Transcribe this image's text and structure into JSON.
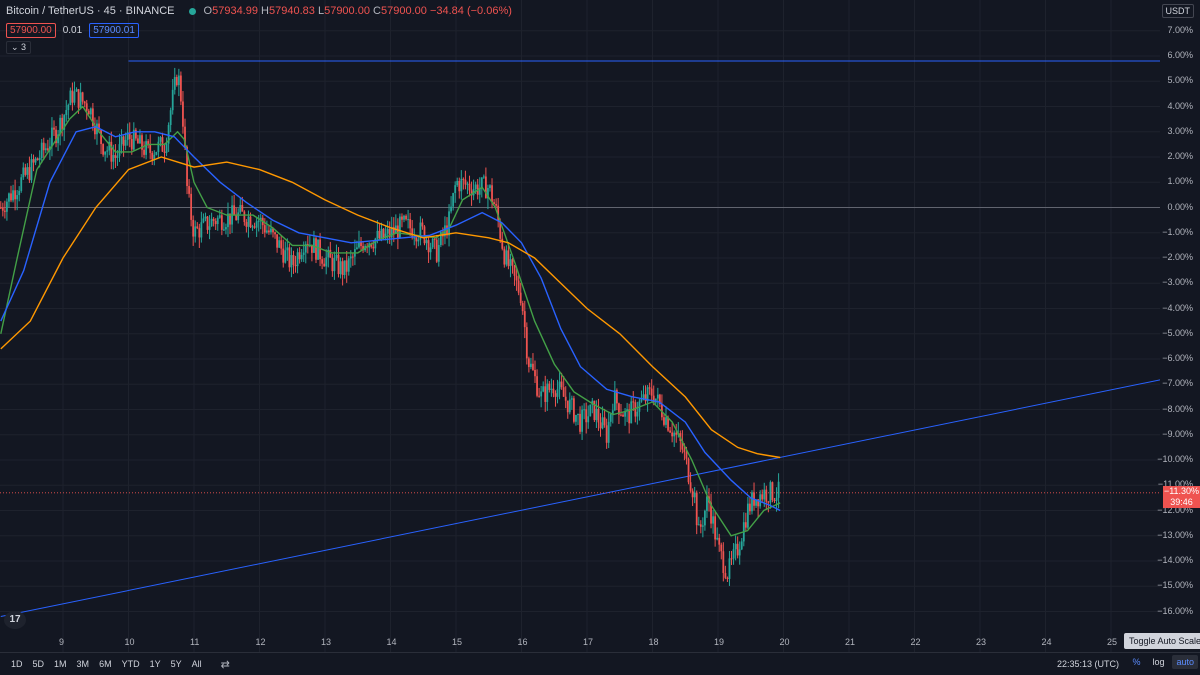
{
  "header": {
    "symbol_title": "Bitcoin / TetherUS · 45 · BINANCE",
    "open_label": "O",
    "open_value": "57934.99",
    "high_label": "H",
    "high_value": "57940.83",
    "low_label": "L",
    "low_value": "57900.00",
    "close_label": "C",
    "close_value": "57900.00",
    "change": "−34.84 (−0.06%)"
  },
  "quote": {
    "bid": "57900.00",
    "spread": "0.01",
    "ask": "57900.01"
  },
  "indicators_toggle": "⌄ 3",
  "currency": "USDT",
  "colors": {
    "background": "#131722",
    "up": "#26a69a",
    "down": "#ef5350",
    "ma_fast": "#43a047",
    "ma_mid": "#2962ff",
    "ma_slow": "#ff9800",
    "trendline": "#2962ff"
  },
  "price_axis": [
    "7.00%",
    "6.00%",
    "5.00%",
    "4.00%",
    "3.00%",
    "2.00%",
    "1.00%",
    "0.00%",
    "−1.00%",
    "−2.00%",
    "−3.00%",
    "−4.00%",
    "−5.00%",
    "−6.00%",
    "−7.00%",
    "−8.00%",
    "−9.00%",
    "−10.00%",
    "−11.00%",
    "−12.00%",
    "−13.00%",
    "−14.00%",
    "−15.00%",
    "−16.00%"
  ],
  "time_axis": [
    "9",
    "10",
    "11",
    "12",
    "13",
    "14",
    "15",
    "16",
    "17",
    "18",
    "19",
    "20",
    "21",
    "22",
    "23",
    "24",
    "25"
  ],
  "last_price_tag": {
    "value": "−11.30%",
    "countdown": "39:46"
  },
  "chart_data": {
    "type": "candlestick",
    "y_unit": "%",
    "y_range": [
      -16.5,
      7.5
    ],
    "x_range": [
      8.05,
      25.8
    ],
    "close_path": [
      [
        8.05,
        0.0
      ],
      [
        8.5,
        1.5
      ],
      [
        8.9,
        3.0
      ],
      [
        9.15,
        4.5
      ],
      [
        9.4,
        4.0
      ],
      [
        9.6,
        2.5
      ],
      [
        9.8,
        2.0
      ],
      [
        10.0,
        2.8
      ],
      [
        10.3,
        2.2
      ],
      [
        10.55,
        2.5
      ],
      [
        10.75,
        5.4
      ],
      [
        10.82,
        4.0
      ],
      [
        10.9,
        0.5
      ],
      [
        11.0,
        -1.0
      ],
      [
        11.3,
        -0.5
      ],
      [
        11.7,
        -0.3
      ],
      [
        12.0,
        -0.5
      ],
      [
        12.3,
        -1.5
      ],
      [
        12.5,
        -2.3
      ],
      [
        12.7,
        -1.2
      ],
      [
        13.0,
        -2.0
      ],
      [
        13.3,
        -2.5
      ],
      [
        13.6,
        -1.3
      ],
      [
        13.9,
        -1.2
      ],
      [
        14.2,
        -0.7
      ],
      [
        14.5,
        -1.0
      ],
      [
        14.7,
        -1.8
      ],
      [
        14.9,
        -0.5
      ],
      [
        15.0,
        1.0
      ],
      [
        15.3,
        0.8
      ],
      [
        15.5,
        0.8
      ],
      [
        15.6,
        0.0
      ],
      [
        15.75,
        -2.0
      ],
      [
        16.0,
        -3.5
      ],
      [
        16.1,
        -6.0
      ],
      [
        16.3,
        -7.5
      ],
      [
        16.5,
        -7.0
      ],
      [
        16.7,
        -7.7
      ],
      [
        16.9,
        -8.5
      ],
      [
        17.1,
        -8.0
      ],
      [
        17.3,
        -9.0
      ],
      [
        17.4,
        -7.5
      ],
      [
        17.6,
        -8.3
      ],
      [
        17.8,
        -7.8
      ],
      [
        18.0,
        -7.3
      ],
      [
        18.2,
        -8.3
      ],
      [
        18.45,
        -9.5
      ],
      [
        18.65,
        -11.5
      ],
      [
        18.7,
        -13.0
      ],
      [
        18.85,
        -11.5
      ],
      [
        19.0,
        -13.5
      ],
      [
        19.15,
        -14.5
      ],
      [
        19.3,
        -13.5
      ],
      [
        19.45,
        -12.0
      ],
      [
        19.55,
        -11.5
      ],
      [
        19.7,
        -11.3
      ],
      [
        19.95,
        -11.3
      ]
    ],
    "series": [
      {
        "name": "",
        "values": [
          [
            8.05,
            -5.0
          ],
          [
            8.3,
            -2.0
          ],
          [
            8.6,
            1.5
          ],
          [
            8.85,
            2.5
          ],
          [
            9.1,
            3.5
          ],
          [
            9.3,
            4.0
          ],
          [
            9.55,
            3.0
          ],
          [
            9.8,
            2.2
          ],
          [
            10.05,
            2.2
          ],
          [
            10.3,
            2.5
          ],
          [
            10.55,
            2.5
          ],
          [
            10.75,
            3.0
          ],
          [
            10.85,
            2.7
          ],
          [
            11.0,
            1.0
          ],
          [
            11.2,
            0.0
          ],
          [
            11.5,
            -0.3
          ],
          [
            11.9,
            -0.3
          ],
          [
            12.2,
            -0.8
          ],
          [
            12.5,
            -1.5
          ],
          [
            12.8,
            -1.5
          ],
          [
            13.1,
            -1.8
          ],
          [
            13.5,
            -1.8
          ],
          [
            13.8,
            -1.3
          ],
          [
            14.1,
            -1.0
          ],
          [
            14.4,
            -1.1
          ],
          [
            14.7,
            -1.2
          ],
          [
            14.9,
            -0.8
          ],
          [
            15.1,
            0.3
          ],
          [
            15.4,
            0.8
          ],
          [
            15.6,
            0.0
          ],
          [
            15.9,
            -2.2
          ],
          [
            16.2,
            -4.5
          ],
          [
            16.5,
            -6.2
          ],
          [
            16.8,
            -7.3
          ],
          [
            17.1,
            -7.8
          ],
          [
            17.4,
            -8.2
          ],
          [
            17.7,
            -8.0
          ],
          [
            18.0,
            -7.7
          ],
          [
            18.3,
            -8.5
          ],
          [
            18.6,
            -10.0
          ],
          [
            18.9,
            -11.8
          ],
          [
            19.2,
            -13.0
          ],
          [
            19.45,
            -12.8
          ],
          [
            19.7,
            -12.0
          ],
          [
            19.95,
            -11.7
          ]
        ]
      },
      {
        "name": "",
        "values": [
          [
            8.05,
            -4.5
          ],
          [
            8.4,
            -2.5
          ],
          [
            8.8,
            1.0
          ],
          [
            9.2,
            3.0
          ],
          [
            9.5,
            3.2
          ],
          [
            9.8,
            2.8
          ],
          [
            10.1,
            3.0
          ],
          [
            10.4,
            3.0
          ],
          [
            10.7,
            2.8
          ],
          [
            11.0,
            2.0
          ],
          [
            11.4,
            1.0
          ],
          [
            11.8,
            0.2
          ],
          [
            12.2,
            -0.5
          ],
          [
            12.6,
            -1.0
          ],
          [
            13.0,
            -1.2
          ],
          [
            13.4,
            -1.4
          ],
          [
            13.8,
            -1.3
          ],
          [
            14.2,
            -1.2
          ],
          [
            14.6,
            -1.1
          ],
          [
            15.0,
            -0.7
          ],
          [
            15.4,
            -0.2
          ],
          [
            15.7,
            -0.6
          ],
          [
            16.0,
            -1.4
          ],
          [
            16.3,
            -2.8
          ],
          [
            16.6,
            -4.8
          ],
          [
            16.9,
            -6.3
          ],
          [
            17.3,
            -7.2
          ],
          [
            17.7,
            -7.5
          ],
          [
            18.1,
            -7.7
          ],
          [
            18.5,
            -8.5
          ],
          [
            18.8,
            -9.7
          ],
          [
            19.2,
            -10.8
          ],
          [
            19.5,
            -11.5
          ],
          [
            19.8,
            -11.8
          ],
          [
            19.95,
            -12.0
          ]
        ]
      },
      {
        "name": "",
        "values": [
          [
            8.05,
            -5.6
          ],
          [
            8.5,
            -4.5
          ],
          [
            9.0,
            -2.0
          ],
          [
            9.5,
            0.0
          ],
          [
            10.0,
            1.5
          ],
          [
            10.5,
            2.0
          ],
          [
            11.0,
            1.6
          ],
          [
            11.5,
            1.8
          ],
          [
            12.0,
            1.5
          ],
          [
            12.5,
            1.0
          ],
          [
            13.0,
            0.3
          ],
          [
            13.5,
            -0.3
          ],
          [
            14.0,
            -0.8
          ],
          [
            14.5,
            -1.2
          ],
          [
            15.0,
            -1.0
          ],
          [
            15.5,
            -1.2
          ],
          [
            15.8,
            -1.4
          ],
          [
            16.2,
            -2.0
          ],
          [
            16.6,
            -3.0
          ],
          [
            17.0,
            -4.0
          ],
          [
            17.5,
            -5.0
          ],
          [
            18.0,
            -6.3
          ],
          [
            18.5,
            -7.5
          ],
          [
            18.9,
            -8.8
          ],
          [
            19.3,
            -9.5
          ],
          [
            19.6,
            -9.75
          ],
          [
            19.95,
            -9.9
          ]
        ]
      }
    ],
    "reference_lines": [
      {
        "kind": "horizontal",
        "y": 5.8,
        "x_start": 10.0,
        "x_end": 25.8
      },
      {
        "kind": "trendline",
        "from": [
          8.05,
          -16.2
        ],
        "to": [
          25.8,
          -6.8
        ]
      },
      {
        "kind": "horizontal_zero",
        "y": 0.0
      },
      {
        "kind": "last_price_dotted",
        "y": -11.3
      }
    ],
    "grid": true
  },
  "bottom": {
    "ranges": [
      "1D",
      "5D",
      "1M",
      "3M",
      "6M",
      "YTD",
      "1Y",
      "5Y",
      "All"
    ],
    "goto_icon": "calendar-range-icon",
    "clock": "22:35:13 (UTC)",
    "percent_label": "%",
    "log_label": "log",
    "auto_label": "auto",
    "tooltip": "Toggle Auto Scale"
  },
  "logo_text": "17"
}
